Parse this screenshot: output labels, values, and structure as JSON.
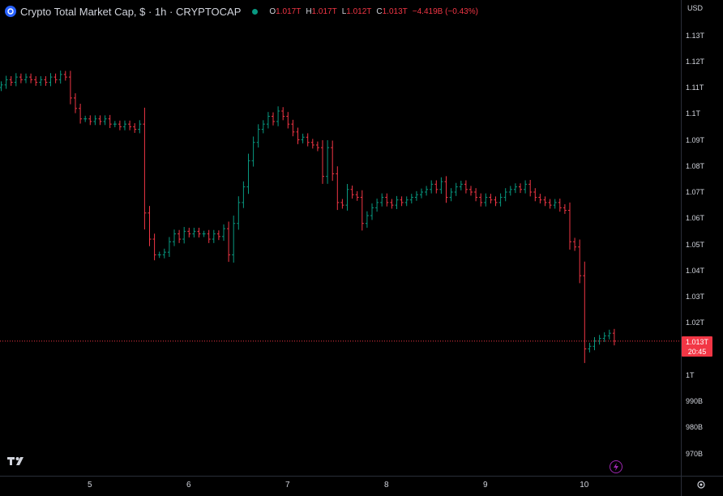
{
  "header": {
    "title": "Crypto Total Market Cap, $ · 1h · CRYPTOCAP",
    "open_label": "O",
    "open": "1.017T",
    "high_label": "H",
    "high": "1.017T",
    "low_label": "L",
    "low": "1.012T",
    "close_label": "C",
    "close": "1.013T",
    "change": "−4.419B (−0.43%)"
  },
  "axis": {
    "currency": "USD",
    "last_price": "1.013T",
    "countdown": "20:45"
  },
  "colors": {
    "up": "#089981",
    "down": "#f23645",
    "background": "#000000"
  },
  "icons": {
    "logo": "tradingview-logo-icon",
    "flash": "lightning-icon",
    "settings": "gear-icon"
  },
  "chart_data": {
    "type": "line",
    "style": "ohlc-bars",
    "y_unit": "T",
    "ylim": [
      0.9625,
      1.136
    ],
    "y_ticks": [
      "1.13T",
      "1.12T",
      "1.11T",
      "1.1T",
      "1.09T",
      "1.08T",
      "1.07T",
      "1.06T",
      "1.05T",
      "1.04T",
      "1.03T",
      "1.02T",
      "1T",
      "990B",
      "980B",
      "970B"
    ],
    "y_tick_values": [
      1.13,
      1.12,
      1.11,
      1.1,
      1.09,
      1.08,
      1.07,
      1.06,
      1.05,
      1.04,
      1.03,
      1.02,
      1.0,
      0.99,
      0.98,
      0.97
    ],
    "x_ticks": [
      "5",
      "6",
      "7",
      "8",
      "9",
      "10"
    ],
    "x_tick_index": [
      18,
      38,
      58,
      78,
      98,
      118
    ],
    "last_price": 1.013,
    "closes": [
      1.111,
      1.113,
      1.112,
      1.114,
      1.113,
      1.114,
      1.113,
      1.112,
      1.113,
      1.112,
      1.114,
      1.113,
      1.115,
      1.114,
      1.106,
      1.102,
      1.098,
      1.098,
      1.097,
      1.098,
      1.097,
      1.098,
      1.096,
      1.096,
      1.095,
      1.096,
      1.095,
      1.094,
      1.096,
      1.062,
      1.052,
      1.046,
      1.046,
      1.047,
      1.051,
      1.054,
      1.052,
      1.055,
      1.054,
      1.055,
      1.054,
      1.054,
      1.052,
      1.054,
      1.053,
      1.056,
      1.046,
      1.058,
      1.066,
      1.072,
      1.082,
      1.089,
      1.094,
      1.096,
      1.099,
      1.097,
      1.101,
      1.099,
      1.096,
      1.093,
      1.09,
      1.091,
      1.089,
      1.088,
      1.087,
      1.076,
      1.087,
      1.077,
      1.066,
      1.065,
      1.071,
      1.069,
      1.068,
      1.058,
      1.061,
      1.064,
      1.066,
      1.068,
      1.066,
      1.065,
      1.067,
      1.066,
      1.067,
      1.068,
      1.069,
      1.07,
      1.071,
      1.073,
      1.071,
      1.074,
      1.068,
      1.07,
      1.072,
      1.073,
      1.071,
      1.07,
      1.068,
      1.066,
      1.068,
      1.067,
      1.066,
      1.068,
      1.07,
      1.071,
      1.072,
      1.071,
      1.073,
      1.07,
      1.068,
      1.067,
      1.066,
      1.065,
      1.066,
      1.064,
      1.063,
      1.051,
      1.049,
      1.038,
      1.01,
      1.011,
      1.013,
      1.014,
      1.015,
      1.016,
      1.013
    ]
  }
}
